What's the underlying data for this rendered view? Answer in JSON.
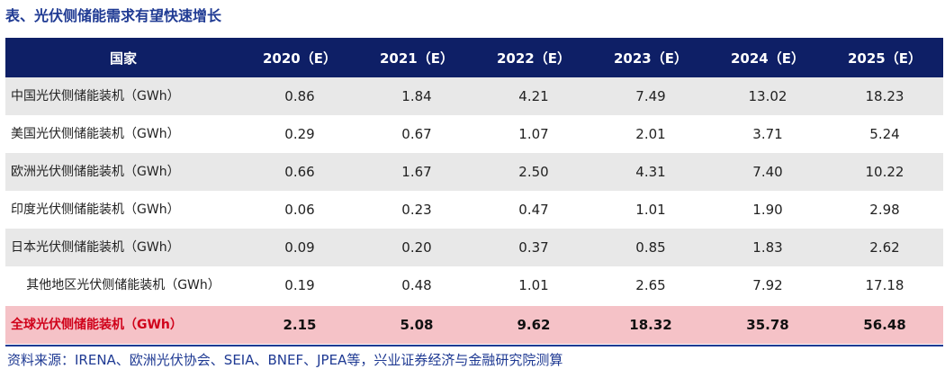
{
  "title": "表、光伏侧储能需求有望快速增长",
  "table": {
    "headers": [
      "国家",
      "2020（E）",
      "2021（E）",
      "2022（E）",
      "2023（E）",
      "2024（E）",
      "2025（E）"
    ],
    "rows": [
      {
        "label": "中国光伏侧储能装机（GWh）",
        "values": [
          "0.86",
          "1.84",
          "4.21",
          "7.49",
          "13.02",
          "18.23"
        ]
      },
      {
        "label": "美国光伏侧储能装机（GWh）",
        "values": [
          "0.29",
          "0.67",
          "1.07",
          "2.01",
          "3.71",
          "5.24"
        ]
      },
      {
        "label": "欧洲光伏侧储能装机（GWh）",
        "values": [
          "0.66",
          "1.67",
          "2.50",
          "4.31",
          "7.40",
          "10.22"
        ]
      },
      {
        "label": "印度光伏侧储能装机（GWh）",
        "values": [
          "0.06",
          "0.23",
          "0.47",
          "1.01",
          "1.90",
          "2.98"
        ]
      },
      {
        "label": "日本光伏侧储能装机（GWh）",
        "values": [
          "0.09",
          "0.20",
          "0.37",
          "0.85",
          "1.83",
          "2.62"
        ]
      },
      {
        "label": "其他地区光伏侧储能装机（GWh）",
        "values": [
          "0.19",
          "0.48",
          "1.01",
          "2.65",
          "7.92",
          "17.18"
        ]
      }
    ],
    "total": {
      "label": "全球光伏侧储能装机（GWh）",
      "values": [
        "2.15",
        "5.08",
        "9.62",
        "18.32",
        "35.78",
        "56.48"
      ]
    }
  },
  "source": "资料来源：IRENA、欧洲光伏协会、SEIA、BNEF、JPEA等，兴业证券经济与金融研究院测算",
  "colors": {
    "title": "#1f3a93",
    "header_bg": "#0e1f66",
    "band_gray": "#e8e8e8",
    "total_bg": "#f5c2c7",
    "total_label": "#d0021b"
  }
}
